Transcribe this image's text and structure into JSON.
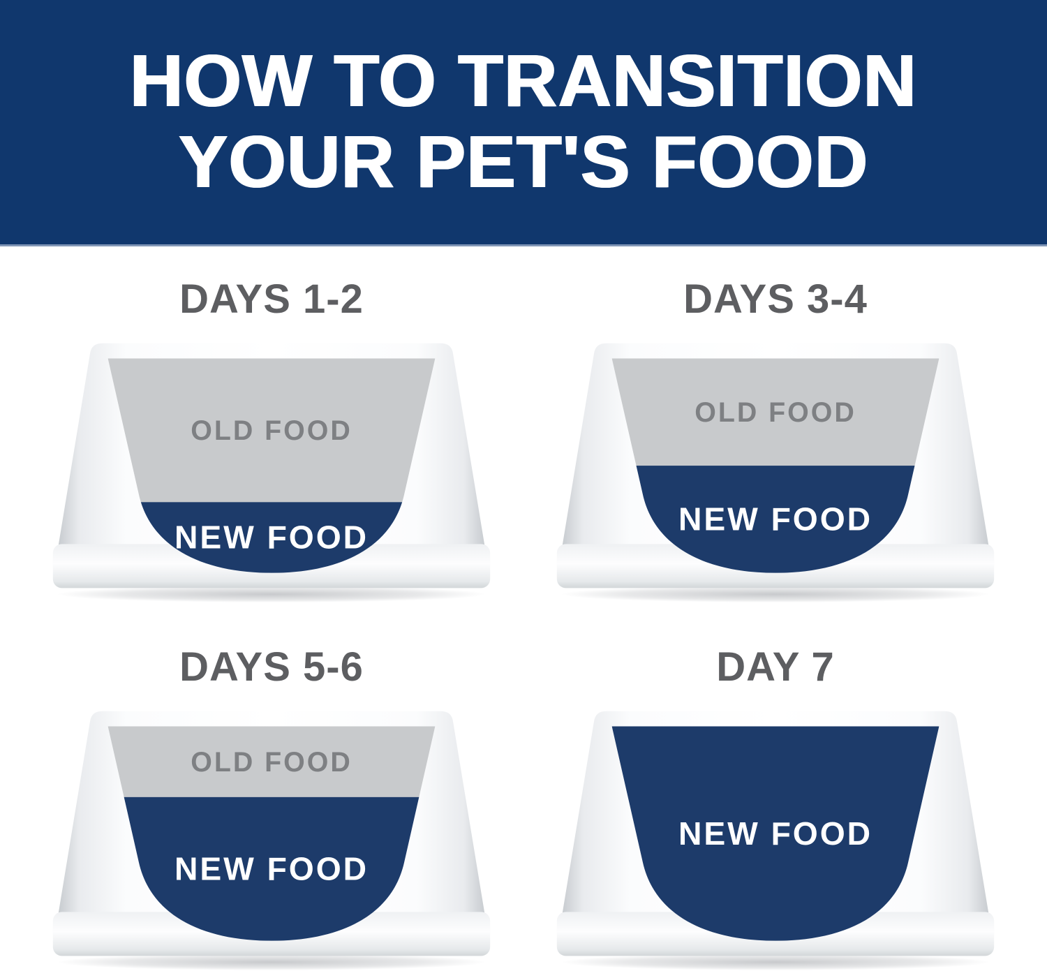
{
  "header": {
    "title_line1": "HOW TO TRANSITION",
    "title_line2": "YOUR PET'S FOOD",
    "bg_color": "#10376d",
    "text_color": "#ffffff"
  },
  "colors": {
    "new_food_fill": "#1d3b6a",
    "old_food_fill": "#c8cacc",
    "old_food_text": "#7e8083",
    "new_food_text": "#ffffff",
    "day_title_text": "#5d5e61"
  },
  "bowls": [
    {
      "title": "DAYS 1-2",
      "old_label": "OLD FOOD",
      "new_label": "NEW FOOD",
      "old_food_pct": 67,
      "new_food_pct": 33
    },
    {
      "title": "DAYS 3-4",
      "old_label": "OLD FOOD",
      "new_label": "NEW FOOD",
      "old_food_pct": 50,
      "new_food_pct": 50
    },
    {
      "title": "DAYS 5-6",
      "old_label": "OLD FOOD",
      "new_label": "NEW FOOD",
      "old_food_pct": 33,
      "new_food_pct": 67
    },
    {
      "title": "DAY 7",
      "old_label": "",
      "new_label": "NEW FOOD",
      "old_food_pct": 0,
      "new_food_pct": 100
    }
  ]
}
